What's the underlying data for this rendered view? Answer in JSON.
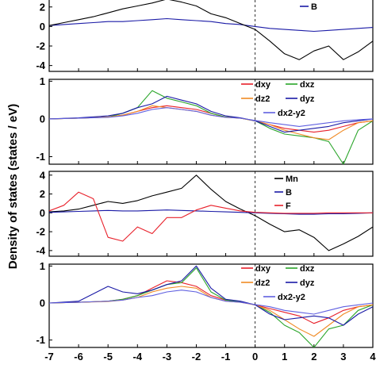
{
  "figure": {
    "ylabel": "Density of states (states / eV)"
  },
  "chart_data": [
    {
      "type": "line",
      "panel": 1,
      "xlim": [
        -7,
        4
      ],
      "ylim": [
        -4.6,
        3.2
      ],
      "yticks": [
        -4,
        -2,
        0,
        2
      ],
      "fermi_level": 0,
      "legend": [
        "B"
      ],
      "series": [
        {
          "name": "B",
          "color": "#1a1aa6",
          "x": [
            -7,
            -6.5,
            -6,
            -5.5,
            -5,
            -4.5,
            -4,
            -3.5,
            -3,
            -2.5,
            -2,
            -1.5,
            -1,
            -0.5,
            0,
            0.5,
            1,
            1.5,
            2,
            2.5,
            3,
            3.5,
            4
          ],
          "y": [
            0.1,
            0.2,
            0.3,
            0.4,
            0.5,
            0.5,
            0.6,
            0.7,
            0.8,
            0.7,
            0.6,
            0.5,
            0.3,
            0.2,
            0,
            -0.2,
            -0.3,
            -0.4,
            -0.5,
            -0.4,
            -0.3,
            -0.2,
            -0.1
          ]
        },
        {
          "name": "",
          "color": "#000000",
          "x": [
            -7,
            -6.5,
            -6,
            -5.5,
            -5,
            -4.5,
            -4,
            -3.5,
            -3,
            -2.5,
            -2,
            -1.5,
            -1,
            -0.5,
            0,
            0.5,
            1,
            1.5,
            2,
            2.5,
            3,
            3.5,
            4
          ],
          "y": [
            0.1,
            0.4,
            0.7,
            1.0,
            1.4,
            1.8,
            2.1,
            2.4,
            2.8,
            2.5,
            2.1,
            1.3,
            0.9,
            0.3,
            -0.3,
            -1.5,
            -2.8,
            -3.4,
            -2.5,
            -2.0,
            -3.4,
            -2.6,
            -1.5
          ]
        }
      ]
    },
    {
      "type": "line",
      "panel": 2,
      "xlim": [
        -7,
        4
      ],
      "ylim": [
        -1.2,
        1.05
      ],
      "yticks": [
        -1,
        0,
        1
      ],
      "fermi_level": 0,
      "legend": [
        "dxy",
        "dxz",
        "dz2",
        "dyz",
        "dx2-y2"
      ],
      "series": [
        {
          "name": "dxy",
          "color": "#e8202a",
          "x": [
            -7,
            -6,
            -5,
            -4.5,
            -4,
            -3.5,
            -3,
            -2.5,
            -2,
            -1.5,
            -1,
            -0.5,
            0,
            0.5,
            1,
            1.5,
            2,
            2.5,
            3,
            3.5,
            4
          ],
          "y": [
            0,
            0.02,
            0.05,
            0.1,
            0.2,
            0.3,
            0.35,
            0.3,
            0.25,
            0.15,
            0.05,
            0.02,
            -0.05,
            -0.15,
            -0.25,
            -0.3,
            -0.35,
            -0.3,
            -0.2,
            -0.1,
            -0.05
          ]
        },
        {
          "name": "dxz",
          "color": "#2aa52a",
          "x": [
            -7,
            -6,
            -5,
            -4.5,
            -4,
            -3.5,
            -3,
            -2.5,
            -2,
            -1.5,
            -1,
            -0.5,
            0,
            0.5,
            1,
            1.5,
            2,
            2.5,
            3,
            3.5,
            4
          ],
          "y": [
            0,
            0.02,
            0.05,
            0.15,
            0.3,
            0.75,
            0.55,
            0.45,
            0.35,
            0.15,
            0.05,
            0.02,
            -0.05,
            -0.25,
            -0.4,
            -0.45,
            -0.5,
            -0.6,
            -1.2,
            -0.3,
            -0.05
          ]
        },
        {
          "name": "dz2",
          "color": "#f08a24",
          "x": [
            -7,
            -6,
            -5,
            -4.5,
            -4,
            -3.5,
            -3,
            -2.5,
            -2,
            -1.5,
            -1,
            -0.5,
            0,
            0.5,
            1,
            1.5,
            2,
            2.5,
            3,
            3.5,
            4
          ],
          "y": [
            0,
            0.02,
            0.05,
            0.1,
            0.2,
            0.35,
            0.3,
            0.25,
            0.2,
            0.1,
            0.04,
            0.02,
            -0.05,
            -0.15,
            -0.3,
            -0.4,
            -0.5,
            -0.55,
            -0.3,
            -0.1,
            -0.05
          ]
        },
        {
          "name": "dyz",
          "color": "#1a1aa6",
          "x": [
            -7,
            -6,
            -5,
            -4.5,
            -4,
            -3.5,
            -3,
            -2.5,
            -2,
            -1.5,
            -1,
            -0.5,
            0,
            0.5,
            1,
            1.5,
            2,
            2.5,
            3,
            3.5,
            4
          ],
          "y": [
            0,
            0.03,
            0.08,
            0.15,
            0.3,
            0.4,
            0.6,
            0.5,
            0.4,
            0.2,
            0.08,
            0.03,
            -0.05,
            -0.2,
            -0.35,
            -0.3,
            -0.25,
            -0.2,
            -0.1,
            -0.05,
            0
          ]
        },
        {
          "name": "dx2-y2",
          "color": "#6060e0",
          "x": [
            -7,
            -6,
            -5,
            -4.5,
            -4,
            -3.5,
            -3,
            -2.5,
            -2,
            -1.5,
            -1,
            -0.5,
            0,
            0.5,
            1,
            1.5,
            2,
            2.5,
            3,
            3.5,
            4
          ],
          "y": [
            0,
            0.02,
            0.04,
            0.08,
            0.15,
            0.25,
            0.3,
            0.25,
            0.2,
            0.1,
            0.04,
            0.02,
            -0.04,
            -0.1,
            -0.15,
            -0.2,
            -0.15,
            -0.1,
            -0.05,
            -0.02,
            0
          ]
        }
      ]
    },
    {
      "type": "line",
      "panel": 3,
      "xlim": [
        -7,
        4
      ],
      "ylim": [
        -4.6,
        4.4
      ],
      "yticks": [
        -4,
        -2,
        0,
        2,
        4
      ],
      "fermi_level": 0,
      "legend": [
        "Mn",
        "B",
        "F"
      ],
      "series": [
        {
          "name": "Mn",
          "color": "#000000",
          "x": [
            -7,
            -6.5,
            -6,
            -5.5,
            -5,
            -4.5,
            -4,
            -3.5,
            -3,
            -2.5,
            -2,
            -1.5,
            -1,
            -0.5,
            0,
            0.5,
            1,
            1.5,
            2,
            2.5,
            3,
            3.5,
            4
          ],
          "y": [
            0.1,
            0.2,
            0.4,
            0.8,
            1.2,
            1.0,
            1.3,
            1.8,
            2.2,
            2.6,
            4.0,
            2.5,
            1.2,
            0.4,
            -0.3,
            -1.2,
            -2.0,
            -1.8,
            -2.6,
            -4.0,
            -3.3,
            -2.5,
            -1.5
          ]
        },
        {
          "name": "B",
          "color": "#1a1aa6",
          "x": [
            -7,
            -6.5,
            -6,
            -5.5,
            -5,
            -4.5,
            -4,
            -3.5,
            -3,
            -2.5,
            -2,
            -1.5,
            -1,
            -0.5,
            0,
            0.5,
            1,
            1.5,
            2,
            2.5,
            3,
            3.5,
            4
          ],
          "y": [
            0.05,
            0.1,
            0.15,
            0.2,
            0.25,
            0.2,
            0.2,
            0.25,
            0.3,
            0.25,
            0.2,
            0.15,
            0.1,
            0.05,
            0,
            -0.05,
            -0.1,
            -0.15,
            -0.15,
            -0.1,
            -0.1,
            -0.05,
            0
          ]
        },
        {
          "name": "F",
          "color": "#e8202a",
          "x": [
            -7,
            -6.5,
            -6,
            -5.5,
            -5,
            -4.5,
            -4,
            -3.5,
            -3,
            -2.5,
            -2,
            -1.5,
            -1,
            -0.5,
            0,
            0.5,
            1,
            1.5,
            2,
            2.5,
            3,
            3.5,
            4
          ],
          "y": [
            0.2,
            0.8,
            2.2,
            1.5,
            -2.6,
            -3.0,
            -1.5,
            -2.2,
            -0.5,
            -0.5,
            0.3,
            0.8,
            0.5,
            0.2,
            0.05,
            0.0,
            -0.05,
            -0.05,
            -0.05,
            0,
            0,
            0,
            0
          ]
        }
      ]
    },
    {
      "type": "line",
      "panel": 4,
      "xlim": [
        -7,
        4
      ],
      "ylim": [
        -1.2,
        1.05
      ],
      "yticks": [
        -1,
        0,
        1
      ],
      "fermi_level": 0,
      "xticks": [
        -7,
        -6,
        -5,
        -4,
        -3,
        -2,
        -1,
        0,
        1,
        2,
        3,
        4
      ],
      "legend": [
        "dxy",
        "dxz",
        "dz2",
        "dyz",
        "dx2-y2"
      ],
      "series": [
        {
          "name": "dxy",
          "color": "#e8202a",
          "x": [
            -7,
            -6,
            -5,
            -4.5,
            -4,
            -3.5,
            -3,
            -2.5,
            -2,
            -1.5,
            -1,
            -0.5,
            0,
            0.5,
            1,
            1.5,
            2,
            2.5,
            3,
            3.5,
            4
          ],
          "y": [
            0,
            0.02,
            0.05,
            0.1,
            0.2,
            0.4,
            0.6,
            0.55,
            0.45,
            0.2,
            0.08,
            0.03,
            -0.05,
            -0.15,
            -0.25,
            -0.35,
            -0.55,
            -0.4,
            -0.2,
            -0.1,
            -0.05
          ]
        },
        {
          "name": "dxz",
          "color": "#2aa52a",
          "x": [
            -7,
            -6,
            -5,
            -4.5,
            -4,
            -3.5,
            -3,
            -2.5,
            -2,
            -1.5,
            -1,
            -0.5,
            0,
            0.5,
            1,
            1.5,
            2,
            2.5,
            3,
            3.5,
            4
          ],
          "y": [
            0,
            0.02,
            0.05,
            0.1,
            0.2,
            0.35,
            0.5,
            0.55,
            0.95,
            0.3,
            0.08,
            0.03,
            -0.05,
            -0.25,
            -0.6,
            -0.8,
            -1.2,
            -0.7,
            -0.6,
            -0.2,
            -0.05
          ]
        },
        {
          "name": "dz2",
          "color": "#f08a24",
          "x": [
            -7,
            -6,
            -5,
            -4.5,
            -4,
            -3.5,
            -3,
            -2.5,
            -2,
            -1.5,
            -1,
            -0.5,
            0,
            0.5,
            1,
            1.5,
            2,
            2.5,
            3,
            3.5,
            4
          ],
          "y": [
            0,
            0.02,
            0.04,
            0.08,
            0.15,
            0.3,
            0.4,
            0.45,
            0.4,
            0.15,
            0.05,
            0.02,
            -0.05,
            -0.2,
            -0.45,
            -0.7,
            -0.9,
            -0.6,
            -0.3,
            -0.1,
            -0.05
          ]
        },
        {
          "name": "dyz",
          "color": "#1a1aa6",
          "x": [
            -7,
            -6,
            -5,
            -4.5,
            -4,
            -3.5,
            -3,
            -2.5,
            -2,
            -1.5,
            -1,
            -0.5,
            0,
            0.5,
            1,
            1.5,
            2,
            2.5,
            3,
            3.5,
            4
          ],
          "y": [
            0,
            0.05,
            0.45,
            0.3,
            0.25,
            0.35,
            0.5,
            0.6,
            1.0,
            0.4,
            0.1,
            0.05,
            -0.05,
            -0.3,
            -0.45,
            -0.4,
            -0.35,
            -0.4,
            -0.6,
            -0.3,
            -0.1
          ]
        },
        {
          "name": "dx2-y2",
          "color": "#6060e0",
          "x": [
            -7,
            -6,
            -5,
            -4.5,
            -4,
            -3.5,
            -3,
            -2.5,
            -2,
            -1.5,
            -1,
            -0.5,
            0,
            0.5,
            1,
            1.5,
            2,
            2.5,
            3,
            3.5,
            4
          ],
          "y": [
            0,
            0.02,
            0.05,
            0.08,
            0.15,
            0.2,
            0.3,
            0.35,
            0.3,
            0.15,
            0.05,
            0.02,
            -0.04,
            -0.1,
            -0.2,
            -0.25,
            -0.3,
            -0.2,
            -0.1,
            -0.05,
            0
          ]
        }
      ]
    }
  ]
}
